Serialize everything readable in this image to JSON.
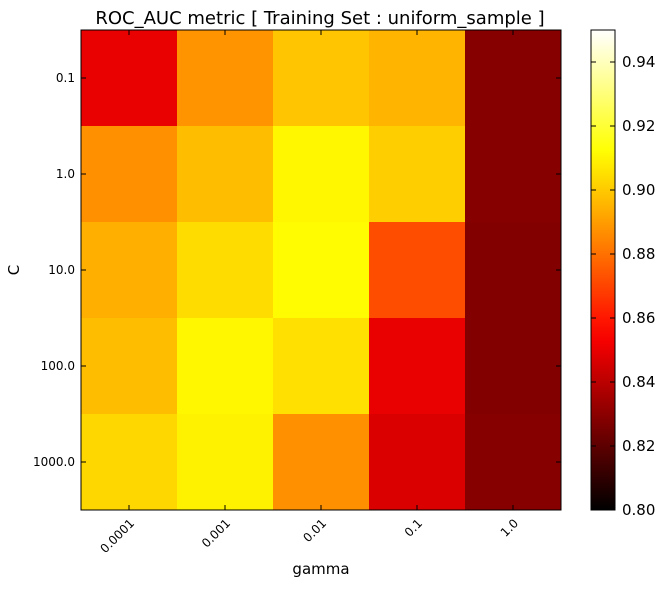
{
  "chart_data": {
    "type": "heatmap",
    "title": "ROC_AUC metric  [ Training Set : uniform_sample ]",
    "xlabel": "gamma",
    "ylabel": "C",
    "x_categories": [
      "0.0001",
      "0.001",
      "0.01",
      "0.1",
      "1.0"
    ],
    "y_categories": [
      "0.1",
      "1.0",
      "10.0",
      "100.0",
      "1000.0"
    ],
    "values": [
      [
        0.85,
        0.888,
        0.899,
        0.895,
        0.829
      ],
      [
        0.887,
        0.897,
        0.91,
        0.901,
        0.829
      ],
      [
        0.894,
        0.904,
        0.911,
        0.872,
        0.828
      ],
      [
        0.897,
        0.91,
        0.905,
        0.85,
        0.828
      ],
      [
        0.903,
        0.909,
        0.887,
        0.847,
        0.829
      ]
    ],
    "colormap": "hot",
    "colorbar": {
      "min": 0.8,
      "max": 0.95,
      "ticks": [
        "0.80",
        "0.82",
        "0.84",
        "0.86",
        "0.88",
        "0.90",
        "0.92",
        "0.94"
      ],
      "tick_values": [
        0.8,
        0.82,
        0.84,
        0.86,
        0.88,
        0.9,
        0.92,
        0.94
      ]
    }
  }
}
